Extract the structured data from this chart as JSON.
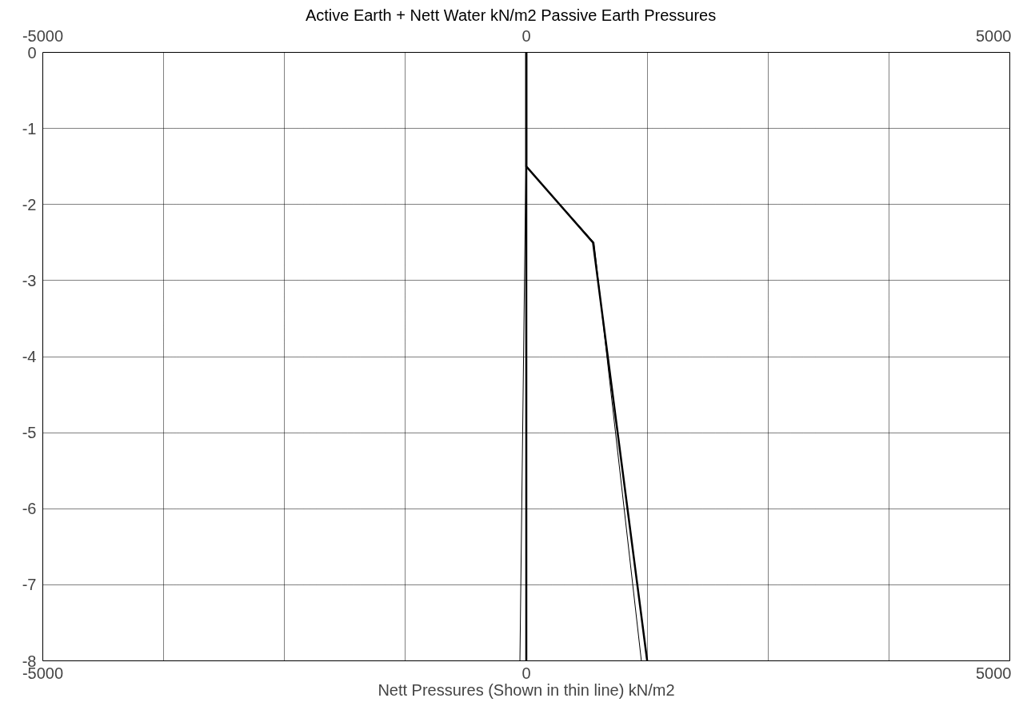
{
  "chart_data": {
    "type": "line",
    "title": "Active Earth + Nett Water    kN/m2     Passive Earth Pressures",
    "xlabel": "Nett Pressures (Shown in thin line) kN/m2",
    "xlim": [
      -5000,
      5000
    ],
    "xticks": [
      -5000,
      {
        "value": -3750,
        "label": null
      },
      {
        "value": -2500,
        "label": null
      },
      {
        "value": -1250,
        "label": null
      },
      0,
      {
        "value": 1250,
        "label": null
      },
      {
        "value": 2500,
        "label": null
      },
      {
        "value": 3750,
        "label": null
      },
      5000
    ],
    "x2lim": [
      -5000,
      5000
    ],
    "x2ticks": [
      -5000,
      0,
      5000
    ],
    "ylim": [
      -8,
      0
    ],
    "yticks": [
      0,
      -1,
      -2,
      -3,
      -4,
      -5,
      -6,
      -7,
      -8
    ],
    "grid": true,
    "marker": "none",
    "line_style": "solid",
    "series": [
      {
        "color": "#000000",
        "x": [
          0,
          0,
          0
        ],
        "values": [
          0,
          -1,
          -8
        ]
      },
      {
        "color": "#000000",
        "x": [
          0,
          0,
          690,
          1250
        ],
        "values": [
          0,
          -1.5,
          -2.5,
          -8
        ]
      },
      {
        "color": "#000000",
        "x": [
          0,
          -66
        ],
        "values": [
          -1,
          -8
        ]
      },
      {
        "color": "#000000",
        "x": [
          0,
          700,
          1190
        ],
        "values": [
          -1.5,
          -2.5,
          -8
        ]
      }
    ]
  }
}
